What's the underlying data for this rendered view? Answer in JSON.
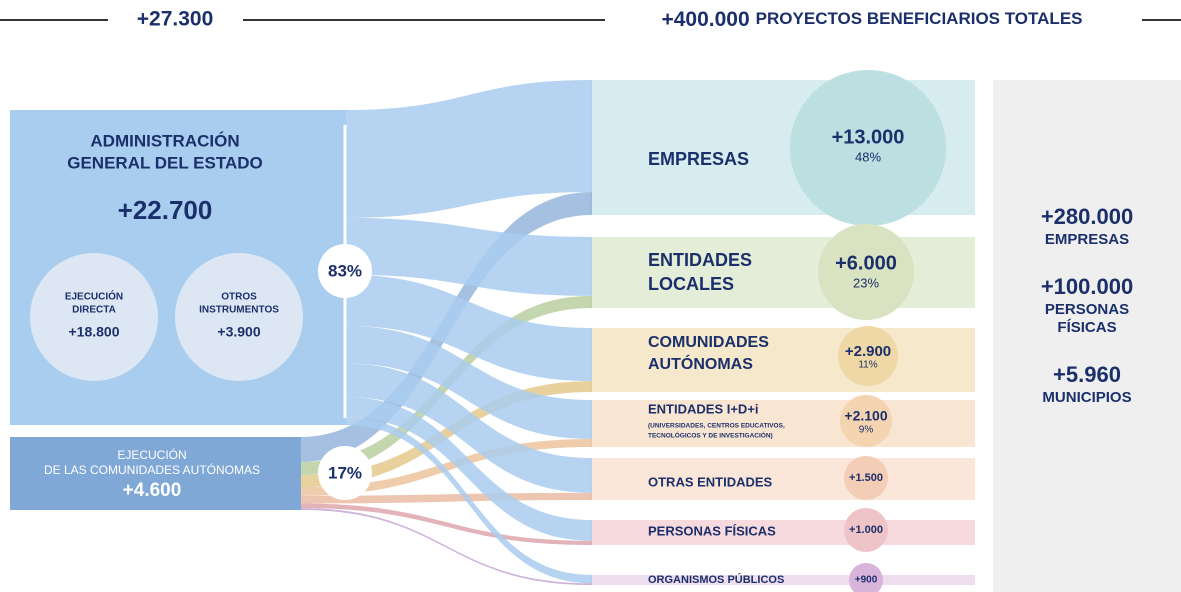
{
  "header": {
    "left_total": "+27.300",
    "right_total": "+400.000",
    "right_label": "PROYECTOS BENEFICIARIOS TOTALES"
  },
  "sources": [
    {
      "title": [
        "ADMINISTRACIÓN",
        "GENERAL DEL ESTADO"
      ],
      "value": "+22.700",
      "share": "83%",
      "parts": [
        {
          "label": [
            "EJECUCIÓN",
            "DIRECTA"
          ],
          "value": "+18.800"
        },
        {
          "label": [
            "OTROS",
            "INSTRUMENTOS"
          ],
          "value": "+3.900"
        }
      ]
    },
    {
      "title": [
        "EJECUCIÓN",
        "DE LAS COMUNIDADES AUTÓNOMAS"
      ],
      "value": "+4.600",
      "share": "17%"
    }
  ],
  "destinations": [
    {
      "label": [
        "EMPRESAS"
      ],
      "value": "+13.000",
      "share": "48%"
    },
    {
      "label": [
        "ENTIDADES",
        "LOCALES"
      ],
      "value": "+6.000",
      "share": "23%"
    },
    {
      "label": [
        "COMUNIDADES",
        "AUTÓNOMAS"
      ],
      "value": "+2.900",
      "share": "11%"
    },
    {
      "label": [
        "ENTIDADES I+D+i"
      ],
      "note": [
        "(UNIVERSIDADES, CENTROS EDUCATIVOS,",
        "TECNOLÓGICOS Y DE INVESTIGACIÓN)"
      ],
      "value": "+2.100",
      "share": "9%"
    },
    {
      "label": [
        "OTRAS ENTIDADES"
      ],
      "value": "+1.500"
    },
    {
      "label": [
        "PERSONAS FÍSICAS"
      ],
      "value": "+1.000"
    },
    {
      "label": [
        "ORGANISMOS PÚBLICOS"
      ],
      "value": "+900"
    }
  ],
  "beneficiaries": [
    {
      "value": "+280.000",
      "label": [
        "EMPRESAS"
      ]
    },
    {
      "value": "+100.000",
      "label": [
        "PERSONAS",
        "FÍSICAS"
      ]
    },
    {
      "value": "+5.960",
      "label": [
        "MUNICIPIOS"
      ]
    }
  ]
}
